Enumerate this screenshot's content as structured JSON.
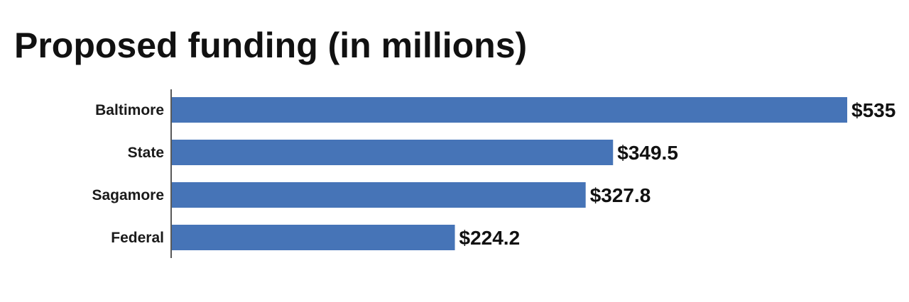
{
  "chart_data": {
    "type": "bar",
    "orientation": "horizontal",
    "title": "Proposed funding (in millions)",
    "categories": [
      "Baltimore",
      "State",
      "Sagamore",
      "Federal"
    ],
    "values": [
      535,
      349.5,
      327.8,
      224.2
    ],
    "value_labels": [
      "$535",
      "$349.5",
      "$327.8",
      "$224.2"
    ],
    "xlim": [
      0,
      535
    ],
    "grid": false,
    "bar_color": "#4674b7"
  }
}
